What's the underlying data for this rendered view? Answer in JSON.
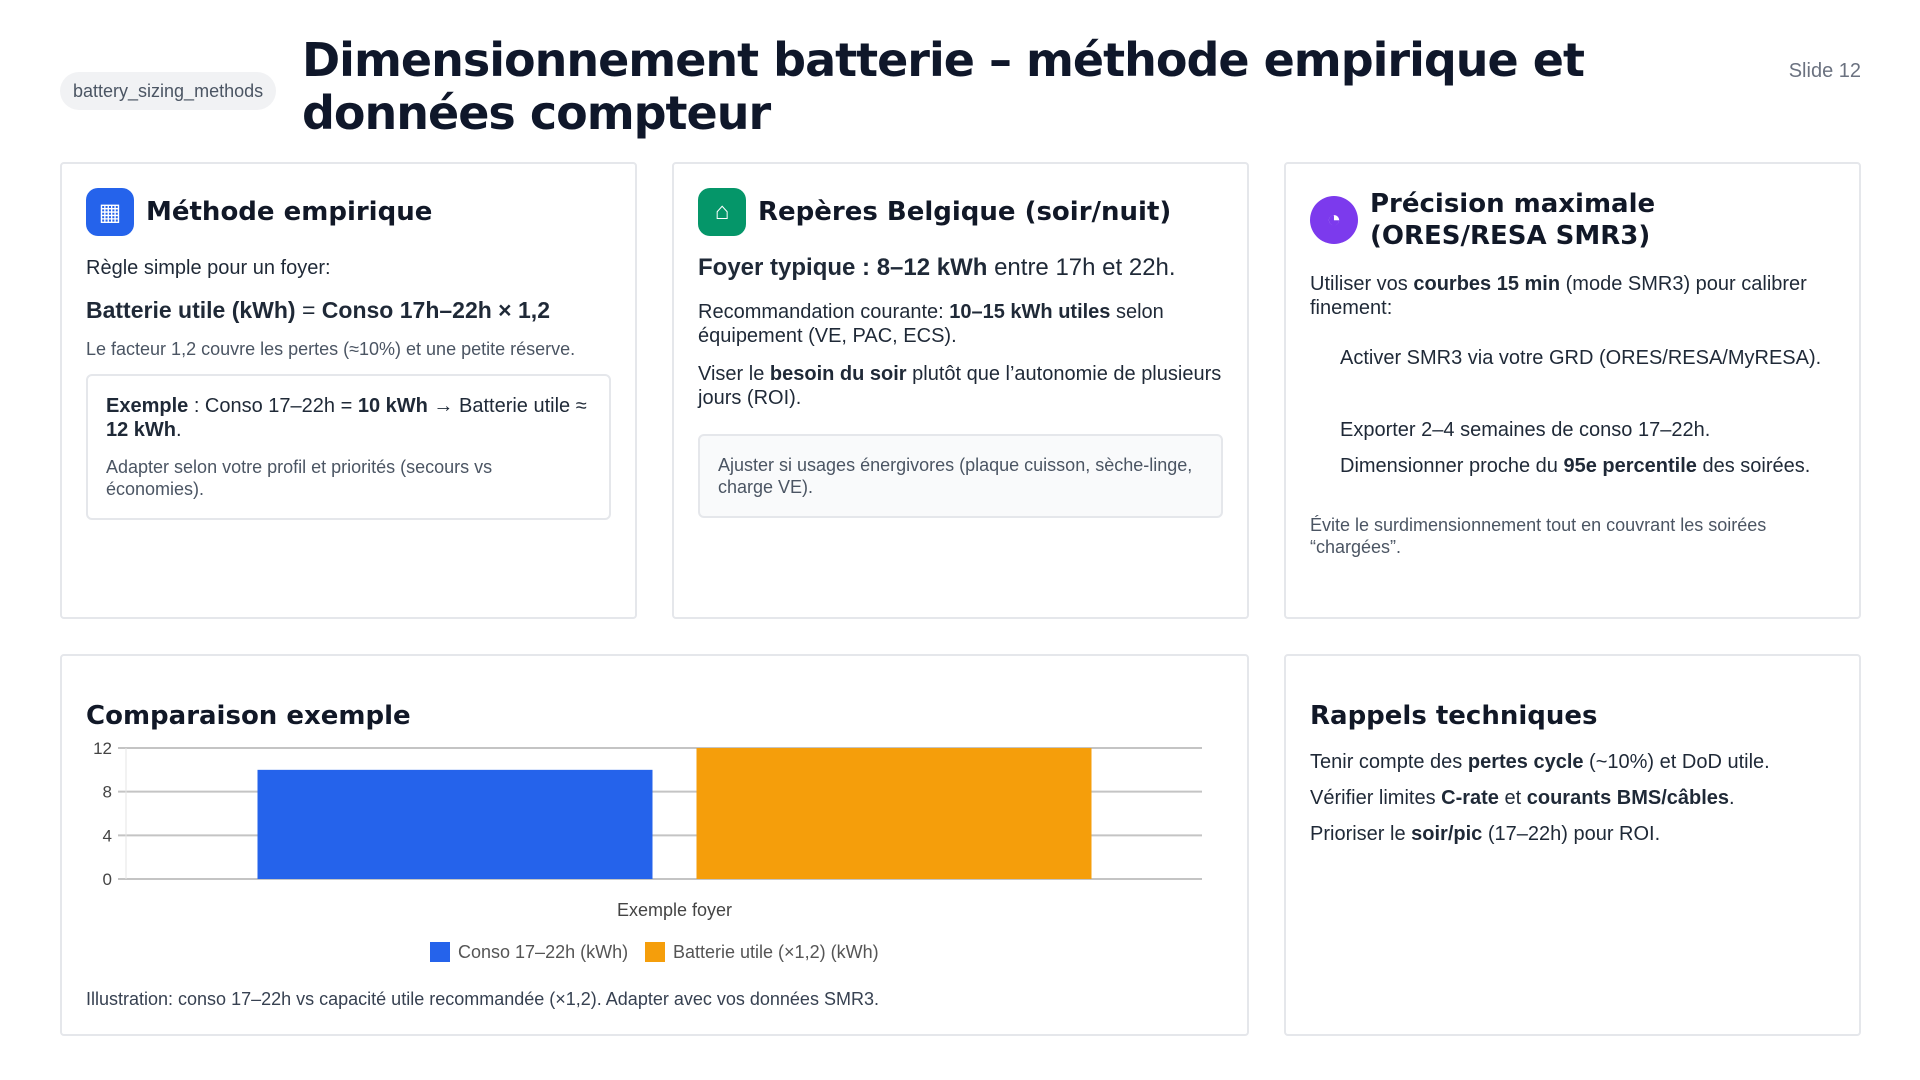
{
  "tag": "battery_sizing_methods",
  "title": "Dimensionnement batterie – méthode empirique et données compteur",
  "slide": "Slide 12",
  "colors": {
    "blue": "#2563eb",
    "orange": "#f59e0b",
    "green": "#059669",
    "purple": "#7c3aed"
  },
  "card1": {
    "icon": "calculator-icon",
    "title": "Méthode empirique",
    "intro": "Règle simple pour un foyer:",
    "formula_a": "Batterie utile (kWh)",
    "formula_eq": " = ",
    "formula_b": "Conso 17h–22h",
    "formula_op": " × 1,2",
    "note": "Le facteur 1,2 couvre les pertes (≈10%) et une petite réserve.",
    "ex_b1": "Exemple",
    "ex_t1": " : Conso 17–22h = ",
    "ex_b2": "10 kWh",
    "ex_t2": " → Batterie utile ≈ ",
    "ex_b3": "12 kWh",
    "ex_t3": ".",
    "ex_note": "Adapter selon votre profil et priorités (secours vs économies)."
  },
  "card2": {
    "icon": "home-icon",
    "title": "Repères Belgique (soir/nuit)",
    "l1_b": "Foyer typique : 8–12 kWh",
    "l1_t": " entre 17h et 22h.",
    "l2_t1": "Recommandation courante: ",
    "l2_b": "10–15 kWh utiles",
    "l2_t2": " selon équipement (VE, PAC, ECS).",
    "l3_t1": "Viser le ",
    "l3_b": "besoin du soir",
    "l3_t2": " plutôt que l’autonomie de plusieurs jours (ROI).",
    "box": "Ajuster si usages énergivores (plaque cuisson, sèche-linge, charge VE)."
  },
  "card3": {
    "icon": "gauge-icon",
    "title": "Précision maximale (ORES/RESA SMR3)",
    "p_t1": "Utiliser vos ",
    "p_b": "courbes 15 min",
    "p_t2": " (mode SMR3) pour calibrer finement:",
    "i1": "Activer SMR3 via votre GRD (ORES/RESA/MyRESA).",
    "i2": "Exporter 2–4 semaines de conso 17–22h.",
    "i3_t1": "Dimensionner proche du ",
    "i3_b": "95e percentile",
    "i3_t2": " des soirées.",
    "note": "Évite le surdimensionnement tout en couvrant les soirées “chargées”."
  },
  "card4": {
    "title": "Comparaison exemple",
    "caption": "Illustration: conso 17–22h vs capacité utile recommandée (×1,2). Adapter avec vos données SMR3."
  },
  "card5": {
    "title": "Rappels techniques",
    "r1_t1": "Tenir compte des ",
    "r1_b": "pertes cycle",
    "r1_t2": " (~10%) et DoD utile.",
    "r2_t1": "Vérifier limites ",
    "r2_b1": "C-rate",
    "r2_t2": " et ",
    "r2_b2": "courants BMS/câbles",
    "r2_t3": ".",
    "r3_t1": "Prioriser le ",
    "r3_b": "soir/pic",
    "r3_t2": " (17–22h) pour ROI."
  },
  "chart_data": {
    "type": "bar",
    "categories": [
      "Exemple foyer"
    ],
    "series": [
      {
        "name": "Conso 17–22h (kWh)",
        "values": [
          10
        ],
        "color": "#2563eb"
      },
      {
        "name": "Batterie utile (×1,2) (kWh)",
        "values": [
          12
        ],
        "color": "#f59e0b"
      }
    ],
    "ylim": [
      0,
      12
    ],
    "yticks": [
      "0",
      "4",
      "8",
      "12"
    ],
    "grid": true,
    "legend": "bottom"
  }
}
